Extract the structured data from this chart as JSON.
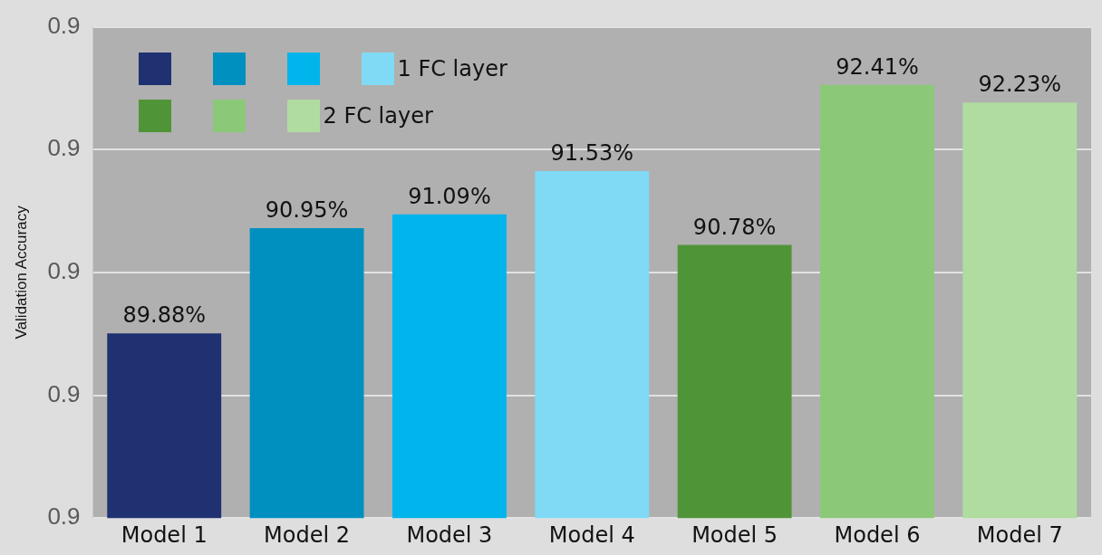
{
  "chart_data": {
    "type": "bar",
    "ylabel": "Validation Accuracy",
    "categories": [
      "Model 1",
      "Model 2",
      "Model 3",
      "Model 4",
      "Model 5",
      "Model 6",
      "Model 7"
    ],
    "series": [
      {
        "name": "1 FC layer",
        "colors": [
          "#1f3171",
          "#0090c0",
          "#00b4ec",
          "#80daf6",
          null,
          null,
          null
        ],
        "values": [
          0.8988,
          0.9095,
          0.9109,
          0.9153,
          null,
          null,
          null
        ],
        "value_labels": [
          "89.88%",
          "90.95%",
          "91.09%",
          "91.53%",
          null,
          null,
          null
        ]
      },
      {
        "name": "2 FC layer",
        "colors": [
          null,
          null,
          null,
          null,
          "#4f9538",
          "#8bc878",
          "#b0dca0"
        ],
        "values": [
          null,
          null,
          null,
          null,
          0.9078,
          0.9241,
          0.9223
        ],
        "value_labels": [
          null,
          null,
          null,
          null,
          "90.78%",
          "92.41%",
          "92.23%"
        ]
      }
    ],
    "ylim": [
      0.88,
      0.93
    ],
    "yticks": [
      {
        "value": 0.88,
        "label": "0.9"
      },
      {
        "value": 0.8925,
        "label": "0.9"
      },
      {
        "value": 0.905,
        "label": "0.9"
      },
      {
        "value": 0.9175,
        "label": "0.9"
      },
      {
        "value": 0.93,
        "label": "0.9"
      }
    ],
    "grid": "y",
    "legend": "top left"
  }
}
